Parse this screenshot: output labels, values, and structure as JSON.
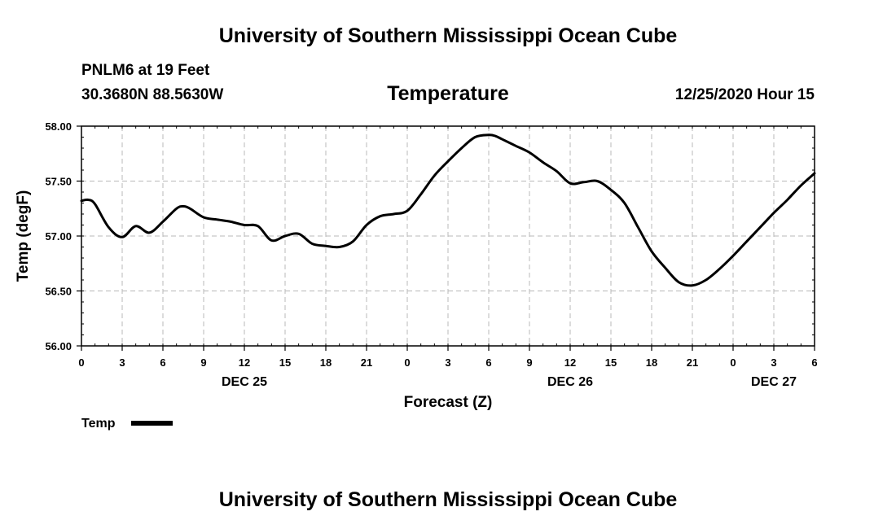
{
  "header": {
    "title": "University of Southern Mississippi Ocean Cube",
    "station": "PNLM6 at 19 Feet",
    "location": "30.3680N 88.5630W",
    "variable": "Temperature",
    "datetime": "12/25/2020 Hour 15"
  },
  "footer": {
    "title": "University of Southern Mississippi Ocean Cube"
  },
  "legend": {
    "label": "Temp",
    "color": "#000000"
  },
  "chart_data": {
    "type": "line",
    "title": "Temperature",
    "xlabel": "Forecast (Z)",
    "ylabel": "Temp (degF)",
    "ylim": [
      56.0,
      58.0
    ],
    "xlim": [
      0,
      54
    ],
    "x_units": "hours since 0Z Dec 25",
    "y_ticks": [
      "58.00",
      "57.50",
      "57.00",
      "56.50",
      "56.00"
    ],
    "y_tick_values": [
      58.0,
      57.5,
      57.0,
      56.5,
      56.0
    ],
    "x_tick_values": [
      0,
      3,
      6,
      9,
      12,
      15,
      18,
      21,
      24,
      27,
      30,
      33,
      36,
      39,
      42,
      45,
      48,
      51,
      54
    ],
    "x_tick_labels": [
      "0",
      "3",
      "6",
      "9",
      "12",
      "15",
      "18",
      "21",
      "0",
      "3",
      "6",
      "9",
      "12",
      "15",
      "18",
      "21",
      "0",
      "3",
      "6"
    ],
    "day_labels": [
      {
        "x": 12,
        "label": "DEC 25"
      },
      {
        "x": 36,
        "label": "DEC 26"
      },
      {
        "x": 51,
        "label": "DEC 27"
      }
    ],
    "grid": true,
    "legend_position": "bottom-left",
    "series": [
      {
        "name": "Temp",
        "color": "#000000",
        "x": [
          0,
          0.5,
          1,
          2,
          3,
          4,
          5,
          6,
          7,
          7.5,
          8,
          9,
          10,
          11,
          12,
          13,
          14,
          15,
          16,
          17,
          18,
          19,
          20,
          21,
          22,
          23,
          24,
          25,
          26,
          27,
          28,
          29,
          30,
          30.5,
          31,
          32,
          33,
          34,
          35,
          36,
          37,
          38,
          39,
          40,
          41,
          42,
          43,
          44,
          45,
          46,
          47,
          48,
          49,
          50,
          51,
          52,
          53,
          54
        ],
        "values": [
          57.32,
          57.33,
          57.29,
          57.08,
          56.99,
          57.09,
          57.03,
          57.13,
          57.25,
          57.27,
          57.25,
          57.17,
          57.15,
          57.13,
          57.1,
          57.09,
          56.96,
          57.0,
          57.02,
          56.93,
          56.91,
          56.9,
          56.95,
          57.1,
          57.18,
          57.2,
          57.23,
          57.38,
          57.55,
          57.68,
          57.8,
          57.9,
          57.92,
          57.91,
          57.88,
          57.82,
          57.76,
          57.67,
          57.59,
          57.48,
          57.49,
          57.5,
          57.42,
          57.3,
          57.08,
          56.86,
          56.71,
          56.58,
          56.55,
          56.6,
          56.7,
          56.82,
          56.95,
          57.08,
          57.21,
          57.33,
          57.46,
          57.57
        ]
      }
    ]
  }
}
